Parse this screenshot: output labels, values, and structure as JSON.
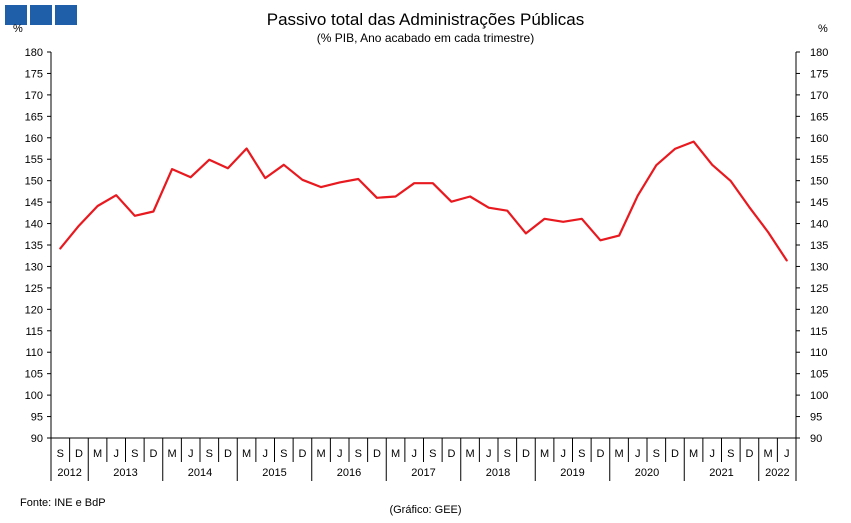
{
  "header": {
    "title": "Passivo total das Administrações Públicas",
    "subtitle": "(% PIB, Ano acabado em cada trimestre)",
    "unit_left": "%",
    "unit_right": "%"
  },
  "footer": {
    "source": "Fonte: INE e BdP",
    "credit": "(Gráfico: GEE)"
  },
  "chart_data": {
    "type": "line",
    "title": "Passivo total das Administrações Públicas",
    "subtitle": "(% PIB, Ano acabado em cada trimestre)",
    "ylabel": "%",
    "ylim": [
      90,
      180
    ],
    "ytick_step": 5,
    "grid": false,
    "line_color": "#e8191f",
    "x_month_labels": [
      "S",
      "D",
      "M",
      "J",
      "S",
      "D",
      "M",
      "J",
      "S",
      "D",
      "M",
      "J",
      "S",
      "D",
      "M",
      "J",
      "S",
      "D",
      "M",
      "J",
      "S",
      "D",
      "M",
      "J",
      "S",
      "D",
      "M",
      "J",
      "S",
      "D",
      "M",
      "J",
      "S",
      "D",
      "M",
      "J",
      "S",
      "D",
      "M",
      "J"
    ],
    "year_groups": [
      {
        "label": "2012",
        "count": 2
      },
      {
        "label": "2013",
        "count": 4
      },
      {
        "label": "2014",
        "count": 4
      },
      {
        "label": "2015",
        "count": 4
      },
      {
        "label": "2016",
        "count": 4
      },
      {
        "label": "2017",
        "count": 4
      },
      {
        "label": "2018",
        "count": 4
      },
      {
        "label": "2019",
        "count": 4
      },
      {
        "label": "2020",
        "count": 4
      },
      {
        "label": "2021",
        "count": 4
      },
      {
        "label": "2022",
        "count": 2
      }
    ],
    "series": [
      {
        "values": [
          134.2,
          139.5,
          144.1,
          146.6,
          141.8,
          142.8,
          152.7,
          150.8,
          154.9,
          152.9,
          157.5,
          150.6,
          153.7,
          150.2,
          148.5,
          149.6,
          150.4,
          146.0,
          146.3,
          149.4,
          149.4,
          145.1,
          146.3,
          143.7,
          143.0,
          137.7,
          141.1,
          140.4,
          141.1,
          136.1,
          137.2,
          146.5,
          153.6,
          157.4,
          159.1,
          153.7,
          149.9,
          143.8,
          138.0,
          131.4
        ]
      }
    ]
  }
}
